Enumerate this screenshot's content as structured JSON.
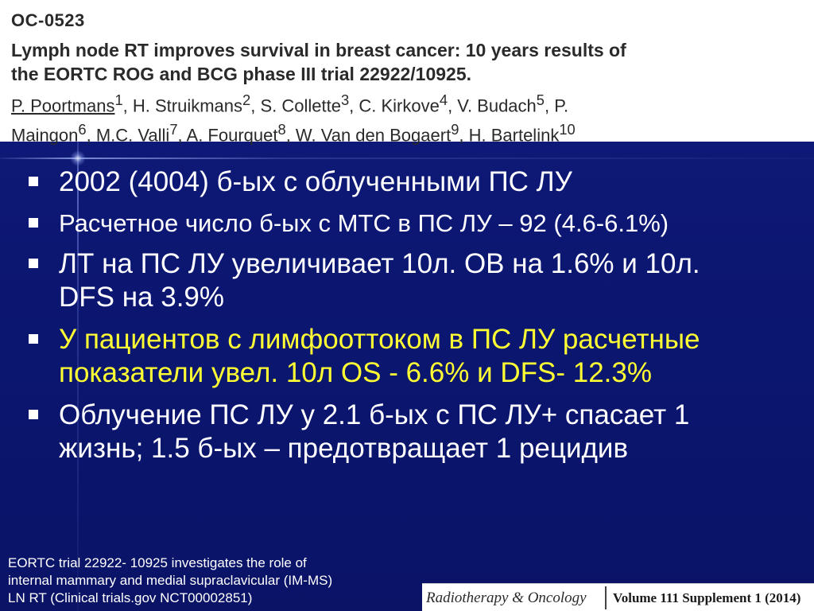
{
  "header": {
    "code": "OC-0523",
    "title_lines": [
      "Lymph node RT improves survival in breast cancer: 10 years results of",
      "the EORTC ROG and BCG phase III trial 22922/10925."
    ],
    "authors_lines": [
      [
        "P. Poortmans",
        "1",
        ", H. Struikmans",
        "2",
        ", S. Collette",
        "3",
        ", C. Kirkove",
        "4",
        ", V. Budach",
        "5",
        ", P."
      ],
      [
        "Maingon",
        "6",
        ", M.C. Valli",
        "7",
        ", A. Fourquet",
        "8",
        ", W. Van den Bogaert",
        "9",
        ", H. Bartelink",
        "10"
      ]
    ]
  },
  "bullets": [
    {
      "lines": [
        "2002 (4004) б-ых с облученными ПС ЛУ"
      ]
    },
    {
      "lines": [
        "Расчетное число б-ых с МТС в ПС ЛУ – 92 (4.6-6.1%)"
      ]
    },
    {
      "lines": [
        "ЛТ на ПС ЛУ увеличивает 10л. ОВ на 1.6% и 10л.",
        "DFS на 3.9%"
      ]
    },
    {
      "lines": [
        "У пациентов с лимфооттоком в ПС ЛУ расчетные",
        "показатели увел. 10л OS - 6.6% и DFS- 12.3%"
      ]
    },
    {
      "lines": [
        "Облучение ПС ЛУ у 2.1 б-ых с ПС ЛУ+ спасает 1",
        "жизнь; 1.5 б-ых – предотвращает 1 рецидив"
      ]
    }
  ],
  "footnote_lines": [
    "EORTC trial 22922- 10925 investigates the role of",
    "internal mammary and medial supraclavicular (IM-MS)",
    "LN RT (Clinical trials.gov NCT00002851)"
  ],
  "journal": {
    "name": "Radiotherapy & Oncology",
    "volume": "Volume 111 Supplement 1 (2014)"
  },
  "colors": {
    "background": "#0c1673",
    "bullet_text": "#ffffff",
    "highlight_text": "#ffff33",
    "header_text": "#2a2a2a"
  }
}
